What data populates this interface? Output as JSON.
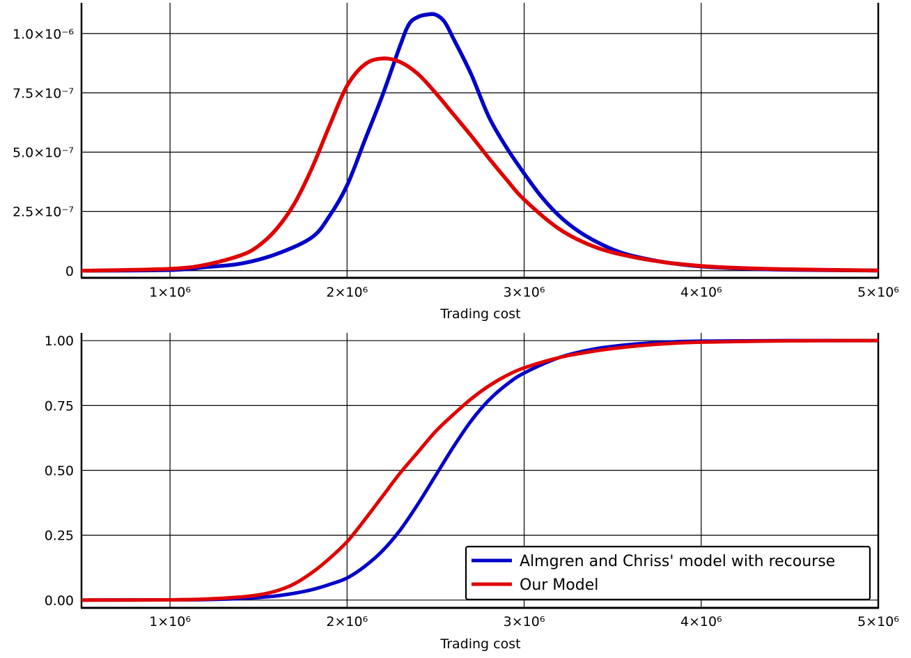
{
  "chart_data": [
    {
      "type": "line",
      "title": "",
      "xlabel": "Trading cost",
      "ylabel": "",
      "xlim": [
        500000,
        5000000
      ],
      "ylim": [
        -3e-08,
        1.13e-06
      ],
      "grid": true,
      "x_ticks": [
        {
          "value": 1000000,
          "label": "1×10⁶"
        },
        {
          "value": 2000000,
          "label": "2×10⁶"
        },
        {
          "value": 3000000,
          "label": "3×10⁶"
        },
        {
          "value": 4000000,
          "label": "4×10⁶"
        },
        {
          "value": 5000000,
          "label": "5×10⁶"
        }
      ],
      "y_ticks": [
        {
          "value": 0,
          "label": "0"
        },
        {
          "value": 2.5e-07,
          "label": "2.5×10⁻⁷"
        },
        {
          "value": 5e-07,
          "label": "5.0×10⁻⁷"
        },
        {
          "value": 7.5e-07,
          "label": "7.5×10⁻⁷"
        },
        {
          "value": 1e-06,
          "label": "1.0×10⁻⁶"
        }
      ],
      "series": [
        {
          "color": "#0000c8",
          "x": [
            500000,
            1000000,
            1200000,
            1400000,
            1600000,
            1800000,
            1900000,
            2000000,
            2100000,
            2200000,
            2300000,
            2350000,
            2400000,
            2450000,
            2500000,
            2550000,
            2600000,
            2700000,
            2800000,
            2900000,
            3000000,
            3100000,
            3200000,
            3300000,
            3400000,
            3500000,
            3600000,
            3800000,
            4000000,
            4200000,
            4500000,
            5000000
          ],
          "y": [
            0,
            3e-09,
            1.5e-08,
            3e-08,
            7e-08,
            1.4e-07,
            2.3e-07,
            3.6e-07,
            5.5e-07,
            7.4e-07,
            9.5e-07,
            1.04e-06,
            1.07e-06,
            1.08e-06,
            1.08e-06,
            1.05e-06,
            9.8e-07,
            8.3e-07,
            6.5e-07,
            5.2e-07,
            4.1e-07,
            3.1e-07,
            2.3e-07,
            1.7e-07,
            1.25e-07,
            9e-08,
            6.5e-08,
            3.5e-08,
            1.8e-08,
            1e-08,
            4e-09,
            1e-09
          ]
        },
        {
          "color": "#e00000",
          "x": [
            500000,
            1000000,
            1200000,
            1400000,
            1500000,
            1600000,
            1700000,
            1800000,
            1900000,
            2000000,
            2100000,
            2200000,
            2300000,
            2400000,
            2500000,
            2600000,
            2700000,
            2800000,
            2900000,
            3000000,
            3200000,
            3400000,
            3600000,
            3800000,
            4000000,
            4200000,
            4500000,
            5000000
          ],
          "y": [
            0,
            8e-09,
            2.5e-08,
            6.5e-08,
            1.05e-07,
            1.75e-07,
            2.8e-07,
            4.3e-07,
            6.1e-07,
            7.8e-07,
            8.7e-07,
            8.95e-07,
            8.8e-07,
            8.3e-07,
            7.5e-07,
            6.6e-07,
            5.7e-07,
            4.75e-07,
            3.85e-07,
            3e-07,
            1.75e-07,
            1e-07,
            6e-08,
            3.5e-08,
            2e-08,
            1.2e-08,
            6e-09,
            1e-09
          ]
        }
      ]
    },
    {
      "type": "line",
      "title": "",
      "xlabel": "Trading cost",
      "ylabel": "",
      "xlim": [
        500000,
        5000000
      ],
      "ylim": [
        -0.03,
        1.03
      ],
      "grid": true,
      "legend_position": "bottom-right",
      "x_ticks": [
        {
          "value": 1000000,
          "label": "1×10⁶"
        },
        {
          "value": 2000000,
          "label": "2×10⁶"
        },
        {
          "value": 3000000,
          "label": "3×10⁶"
        },
        {
          "value": 4000000,
          "label": "4×10⁶"
        },
        {
          "value": 5000000,
          "label": "5×10⁶"
        }
      ],
      "y_ticks": [
        {
          "value": 0,
          "label": "0.00"
        },
        {
          "value": 0.25,
          "label": "0.25"
        },
        {
          "value": 0.5,
          "label": "0.50"
        },
        {
          "value": 0.75,
          "label": "0.75"
        },
        {
          "value": 1.0,
          "label": "1.00"
        }
      ],
      "series": [
        {
          "name": "Almgren and Chriss' model with recourse",
          "color": "#0000c8",
          "x": [
            500000,
            1000000,
            1200000,
            1400000,
            1500000,
            1600000,
            1700000,
            1800000,
            1900000,
            2000000,
            2100000,
            2200000,
            2300000,
            2400000,
            2500000,
            2600000,
            2700000,
            2800000,
            2900000,
            3000000,
            3200000,
            3400000,
            3600000,
            3800000,
            4000000,
            4500000,
            5000000
          ],
          "y": [
            0,
            0.001,
            0.002,
            0.006,
            0.01,
            0.016,
            0.026,
            0.04,
            0.06,
            0.085,
            0.13,
            0.19,
            0.27,
            0.37,
            0.48,
            0.59,
            0.69,
            0.77,
            0.83,
            0.875,
            0.935,
            0.968,
            0.985,
            0.994,
            0.998,
            1.0,
            1.0
          ]
        },
        {
          "name": "Our Model",
          "color": "#e00000",
          "x": [
            500000,
            1000000,
            1200000,
            1400000,
            1500000,
            1600000,
            1700000,
            1800000,
            1900000,
            2000000,
            2100000,
            2200000,
            2300000,
            2400000,
            2500000,
            2600000,
            2700000,
            2800000,
            2900000,
            3000000,
            3200000,
            3400000,
            3600000,
            3800000,
            4000000,
            4500000,
            5000000
          ],
          "y": [
            0,
            0.001,
            0.004,
            0.012,
            0.02,
            0.035,
            0.062,
            0.105,
            0.16,
            0.225,
            0.31,
            0.4,
            0.49,
            0.57,
            0.65,
            0.715,
            0.775,
            0.825,
            0.865,
            0.895,
            0.935,
            0.96,
            0.977,
            0.988,
            0.994,
            0.999,
            1.0
          ]
        }
      ]
    }
  ]
}
